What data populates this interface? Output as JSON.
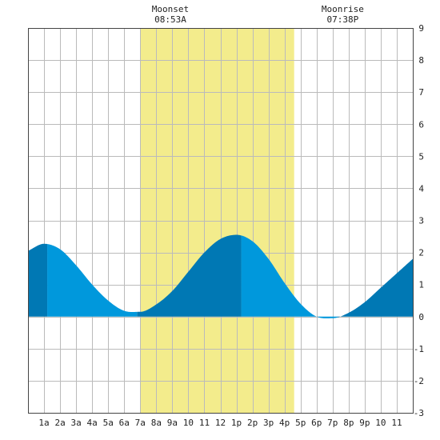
{
  "chart_data": {
    "type": "area",
    "title": "",
    "xlabel": "",
    "ylabel": "",
    "x_ticks": [
      "1a",
      "2a",
      "3a",
      "4a",
      "5a",
      "6a",
      "7a",
      "8a",
      "9a",
      "10",
      "11",
      "12",
      "1p",
      "2p",
      "3p",
      "4p",
      "5p",
      "6p",
      "7p",
      "8p",
      "9p",
      "10",
      "11"
    ],
    "y_ticks": [
      "9",
      "8",
      "7",
      "6",
      "5",
      "4",
      "3",
      "2",
      "1",
      "0",
      "-1",
      "-2",
      "-3"
    ],
    "xlim": [
      0,
      24
    ],
    "ylim": [
      -3,
      9
    ],
    "grid": true,
    "daylight": {
      "start_hour": 7.0,
      "end_hour": 16.6
    },
    "annotations": [
      {
        "label": "Moonset",
        "time": "08:53A",
        "hour": 8.88
      },
      {
        "label": "Moonrise",
        "time": "07:38P",
        "hour": 19.63
      }
    ],
    "tide_extremes": [
      {
        "type": "high",
        "hour": 1.2,
        "value": 2.28
      },
      {
        "type": "low",
        "hour": 6.8,
        "value": 0.12
      },
      {
        "type": "high",
        "hour": 13.3,
        "value": 2.55
      },
      {
        "type": "low",
        "hour": 19.3,
        "value": -0.05
      }
    ],
    "series": [
      {
        "x": [
          0,
          1,
          2,
          3,
          4,
          5,
          6,
          7,
          8,
          9,
          10,
          11,
          12,
          13,
          14,
          15,
          16,
          17,
          18,
          19,
          20,
          21,
          22,
          23,
          24
        ],
        "y": [
          2.05,
          2.27,
          2.1,
          1.6,
          1.0,
          0.5,
          0.18,
          0.15,
          0.38,
          0.8,
          1.4,
          2.0,
          2.42,
          2.55,
          2.35,
          1.8,
          1.05,
          0.4,
          0.0,
          -0.05,
          0.12,
          0.45,
          0.9,
          1.35,
          1.8
        ]
      }
    ],
    "colors": {
      "daylight": "#f3ec8c",
      "tide_light": "#0098dc",
      "tide_dark": "#0078b4",
      "grid": "#bbbbbb",
      "frame": "#444444"
    }
  }
}
